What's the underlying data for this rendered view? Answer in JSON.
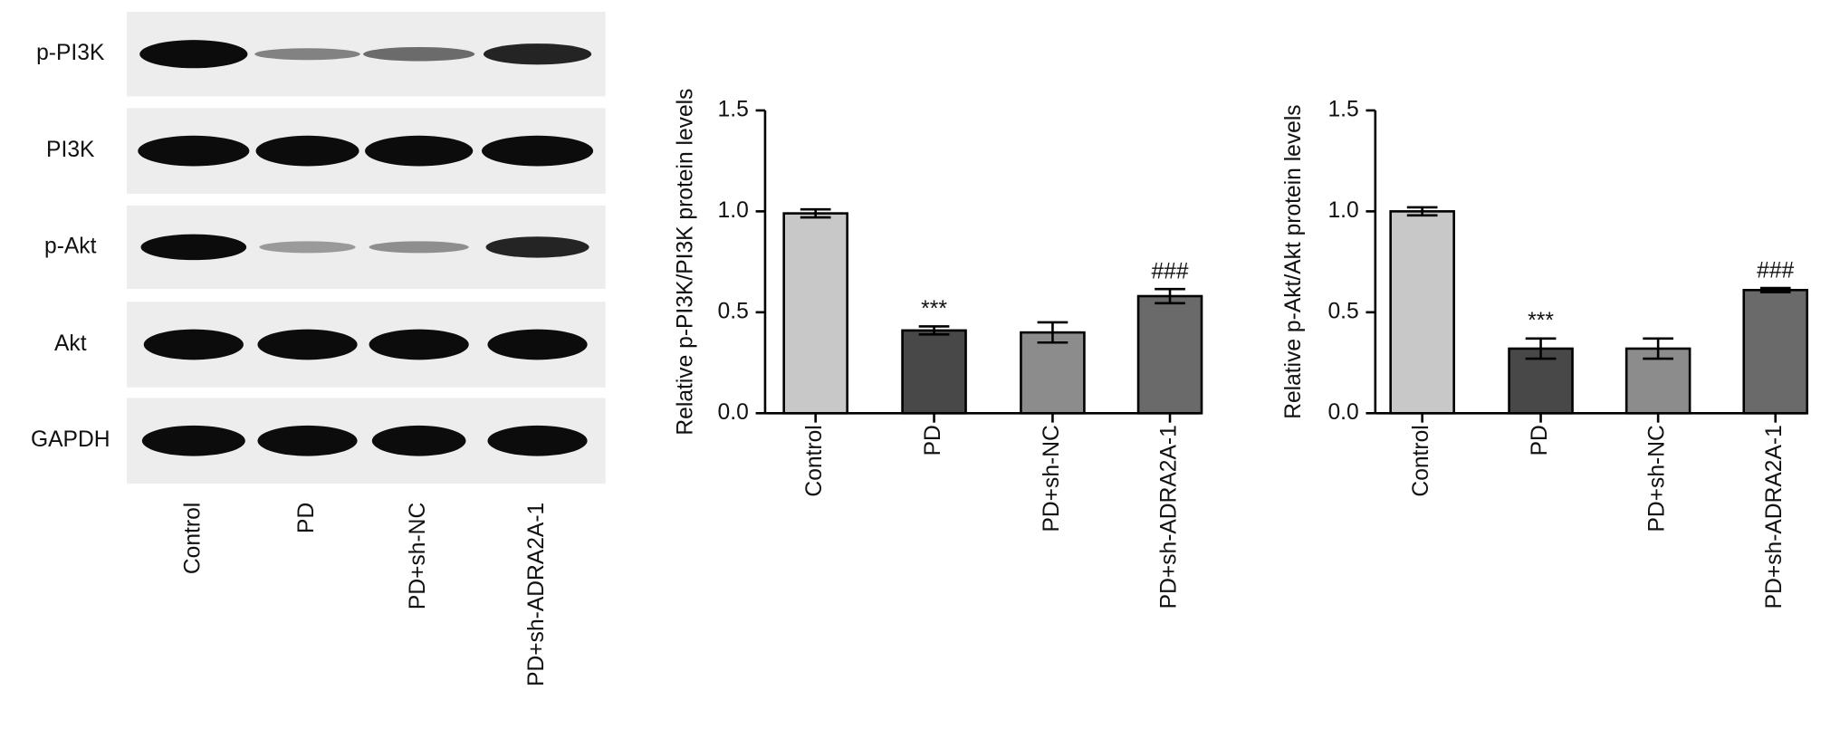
{
  "blot": {
    "rows": [
      "p-PI3K",
      "PI3K",
      "p-Akt",
      "Akt",
      "GAPDH"
    ],
    "lanes": [
      "Control",
      "PD",
      "PD+sh-NC",
      "PD+sh-ADRA2A-1"
    ]
  },
  "chart_data": [
    {
      "type": "bar",
      "ylabel": "Relative p-PI3K/PI3K protein levels",
      "categories": [
        "Control",
        "PD",
        "PD+sh-NC",
        "PD+sh-ADRA2A-1"
      ],
      "values": [
        0.99,
        0.41,
        0.4,
        0.58
      ],
      "errors": [
        0.02,
        0.02,
        0.05,
        0.035
      ],
      "value_annotations": [
        null,
        "***",
        null,
        "###"
      ],
      "colors": [
        "#c8c8c8",
        "#484848",
        "#8c8c8c",
        "#6a6a6a"
      ],
      "ylim": [
        0,
        1.5
      ],
      "yticks": [
        {
          "value": 0,
          "label": "0.0"
        },
        {
          "value": 0.5,
          "label": "0.5"
        },
        {
          "value": 1,
          "label": "1.0"
        },
        {
          "value": 1.5,
          "label": "1.5"
        }
      ]
    },
    {
      "type": "bar",
      "ylabel": "Relative p-Akt/Akt protein levels",
      "categories": [
        "Control",
        "PD",
        "PD+sh-NC",
        "PD+sh-ADRA2A-1"
      ],
      "values": [
        1.0,
        0.32,
        0.32,
        0.61
      ],
      "errors": [
        0.02,
        0.05,
        0.05,
        0.01
      ],
      "value_annotations": [
        null,
        "***",
        null,
        "###"
      ],
      "colors": [
        "#c8c8c8",
        "#484848",
        "#8c8c8c",
        "#6a6a6a"
      ],
      "ylim": [
        0,
        1.5
      ],
      "yticks": [
        {
          "value": 0,
          "label": "0.0"
        },
        {
          "value": 0.5,
          "label": "0.5"
        },
        {
          "value": 1,
          "label": "1.0"
        },
        {
          "value": 1.5,
          "label": "1.5"
        }
      ]
    }
  ]
}
